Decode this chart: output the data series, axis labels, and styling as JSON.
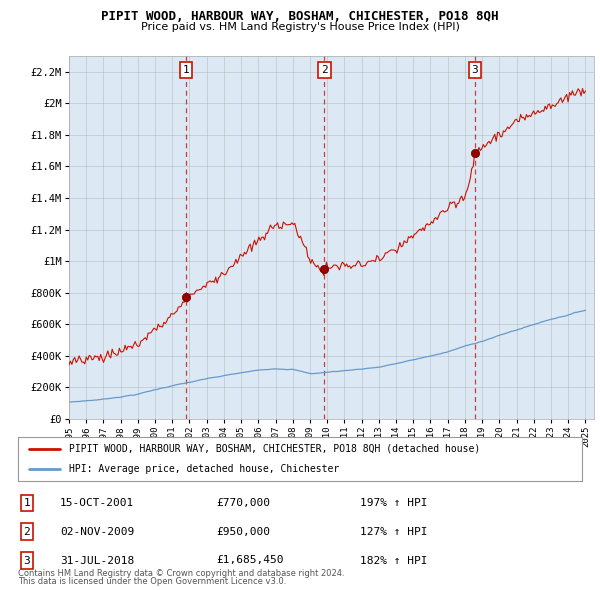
{
  "title": "PIPIT WOOD, HARBOUR WAY, BOSHAM, CHICHESTER, PO18 8QH",
  "subtitle": "Price paid vs. HM Land Registry's House Price Index (HPI)",
  "hpi_color": "#6699cc",
  "price_color": "#cc1100",
  "dashed_line_color": "#cc1100",
  "background_color": "#ffffff",
  "plot_bg_color": "#dce9f5",
  "ylim": [
    0,
    2300000
  ],
  "yticks": [
    0,
    200000,
    400000,
    600000,
    800000,
    1000000,
    1200000,
    1400000,
    1600000,
    1800000,
    2000000,
    2200000
  ],
  "ytick_labels": [
    "£0",
    "£200K",
    "£400K",
    "£600K",
    "£800K",
    "£1M",
    "£1.2M",
    "£1.4M",
    "£1.6M",
    "£1.8M",
    "£2M",
    "£2.2M"
  ],
  "sale_dates": [
    2001.79,
    2009.84,
    2018.58
  ],
  "sale_prices": [
    770000,
    950000,
    1685450
  ],
  "sale_labels": [
    "1",
    "2",
    "3"
  ],
  "legend_entries": [
    "PIPIT WOOD, HARBOUR WAY, BOSHAM, CHICHESTER, PO18 8QH (detached house)",
    "HPI: Average price, detached house, Chichester"
  ],
  "table_rows": [
    {
      "num": "1",
      "date": "15-OCT-2001",
      "price": "£770,000",
      "pct": "197% ↑ HPI"
    },
    {
      "num": "2",
      "date": "02-NOV-2009",
      "price": "£950,000",
      "pct": "127% ↑ HPI"
    },
    {
      "num": "3",
      "date": "31-JUL-2018",
      "price": "£1,685,450",
      "pct": "182% ↑ HPI"
    }
  ],
  "footer": [
    "Contains HM Land Registry data © Crown copyright and database right 2024.",
    "This data is licensed under the Open Government Licence v3.0."
  ]
}
